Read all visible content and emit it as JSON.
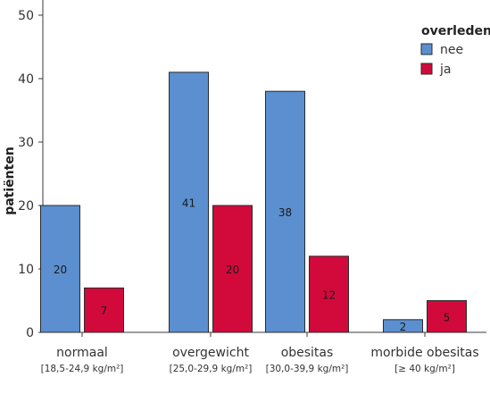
{
  "chart_data": {
    "type": "bar",
    "title": "",
    "xlabel": "",
    "ylabel": "patiënten",
    "ylim": [
      0,
      50
    ],
    "yticks": [
      0,
      10,
      20,
      30,
      40,
      50
    ],
    "grid": false,
    "legend": {
      "title": "overleden",
      "placement": "top-right"
    },
    "categories": [
      {
        "label": "normaal",
        "sublabel": "[18,5-24,9 kg/m²]"
      },
      {
        "label": "overgewicht",
        "sublabel": "[25,0-29,9 kg/m²]"
      },
      {
        "label": "obesitas",
        "sublabel": "[30,0-39,9 kg/m²]"
      },
      {
        "label": "morbide obesitas",
        "sublabel": "[≥ 40 kg/m²]"
      }
    ],
    "series": [
      {
        "name": "nee",
        "color": "#5b8fd0",
        "values": [
          20,
          41,
          38,
          2
        ]
      },
      {
        "name": "ja",
        "color": "#d20a3c",
        "values": [
          7,
          20,
          12,
          5
        ]
      }
    ]
  }
}
